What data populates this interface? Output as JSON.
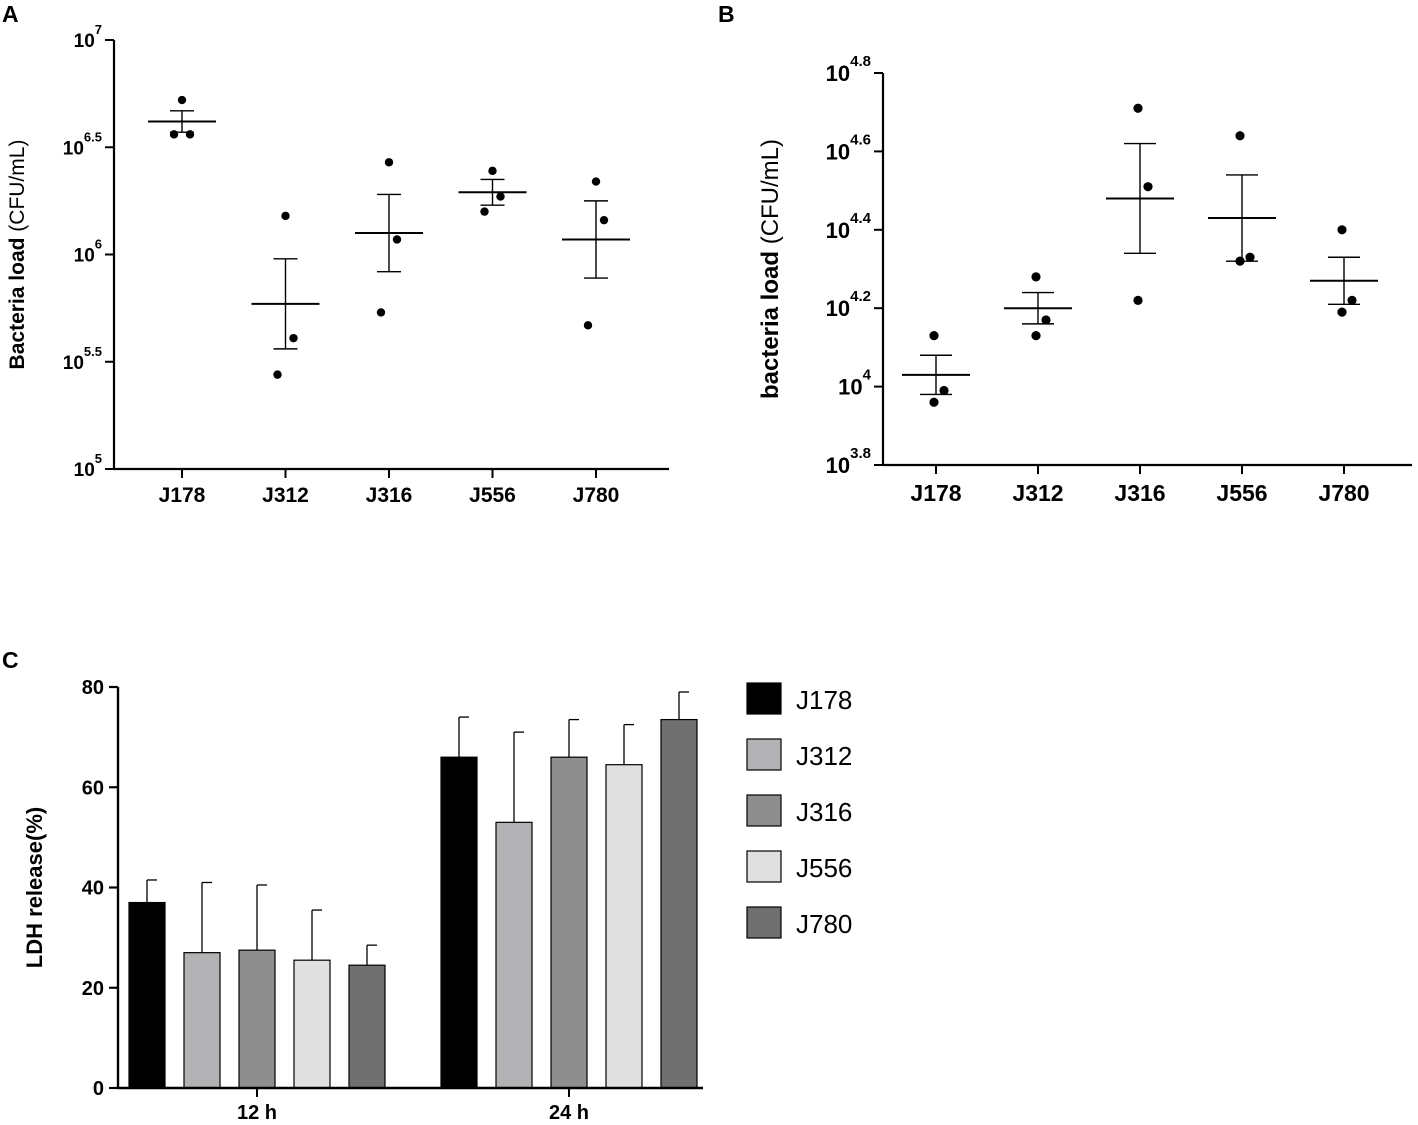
{
  "chart_data": [
    {
      "panel": "A",
      "type": "scatter",
      "ylabel": "Bacteria load",
      "ylabel_unit": "(CFU/mL)",
      "xlabel": "",
      "yscale": "log10",
      "ylim_log10": [
        5,
        7
      ],
      "yticks": [
        {
          "base": "10",
          "exp": "5"
        },
        {
          "base": "10",
          "exp": "5.5"
        },
        {
          "base": "10",
          "exp": "6"
        },
        {
          "base": "10",
          "exp": "6.5"
        },
        {
          "base": "10",
          "exp": "7"
        }
      ],
      "ytick_values_log10": [
        5,
        5.5,
        6,
        6.5,
        7
      ],
      "categories": [
        "J178",
        "J312",
        "J316",
        "J556",
        "J780"
      ],
      "points_log10": [
        [
          6.56,
          6.56,
          6.72
        ],
        [
          5.44,
          5.61,
          6.18
        ],
        [
          5.73,
          6.07,
          6.43
        ],
        [
          6.2,
          6.27,
          6.39
        ],
        [
          5.67,
          6.16,
          6.34
        ]
      ],
      "mean_log10": [
        6.62,
        5.77,
        6.1,
        6.29,
        6.07
      ],
      "sem_log10": [
        0.05,
        0.21,
        0.18,
        0.06,
        0.18
      ]
    },
    {
      "panel": "B",
      "type": "scatter",
      "ylabel": "bacteria load",
      "ylabel_unit": "(CFU/mL)",
      "xlabel": "",
      "yscale": "log10",
      "ylim_log10": [
        3.8,
        4.8
      ],
      "yticks": [
        {
          "base": "10",
          "exp": "3.8"
        },
        {
          "base": "10",
          "exp": "4"
        },
        {
          "base": "10",
          "exp": "4.2"
        },
        {
          "base": "10",
          "exp": "4.4"
        },
        {
          "base": "10",
          "exp": "4.6"
        },
        {
          "base": "10",
          "exp": "4.8"
        }
      ],
      "ytick_values_log10": [
        3.8,
        4.0,
        4.2,
        4.4,
        4.6,
        4.8
      ],
      "categories": [
        "J178",
        "J312",
        "J316",
        "J556",
        "J780"
      ],
      "points_log10": [
        [
          3.96,
          3.99,
          4.13
        ],
        [
          4.13,
          4.17,
          4.28
        ],
        [
          4.22,
          4.51,
          4.71
        ],
        [
          4.32,
          4.33,
          4.64
        ],
        [
          4.19,
          4.22,
          4.4
        ]
      ],
      "mean_log10": [
        4.03,
        4.2,
        4.48,
        4.43,
        4.27
      ],
      "sem_log10": [
        0.05,
        0.04,
        0.14,
        0.11,
        0.06
      ]
    },
    {
      "panel": "C",
      "type": "bar",
      "ylabel": "LDH release(%)",
      "xlabel": "",
      "ylim": [
        0,
        80
      ],
      "yticks": [
        0,
        20,
        40,
        60,
        80
      ],
      "categories": [
        "12 h",
        "24 h"
      ],
      "series": [
        {
          "name": "J178",
          "color": "#000000",
          "values": [
            37,
            66
          ],
          "errors": [
            4.5,
            8
          ]
        },
        {
          "name": "J312",
          "color": "#b3b3b5",
          "values": [
            27,
            53
          ],
          "errors": [
            14,
            18
          ]
        },
        {
          "name": "J316",
          "color": "#8e8e8e",
          "values": [
            27.5,
            66
          ],
          "errors": [
            13,
            7.5
          ]
        },
        {
          "name": "J556",
          "color": "#e0e0e0",
          "values": [
            25.5,
            64.5
          ],
          "errors": [
            10,
            8
          ]
        },
        {
          "name": "J780",
          "color": "#707070",
          "values": [
            24.5,
            73.5
          ],
          "errors": [
            4,
            5.5
          ]
        }
      ],
      "legend_position": "right"
    }
  ]
}
